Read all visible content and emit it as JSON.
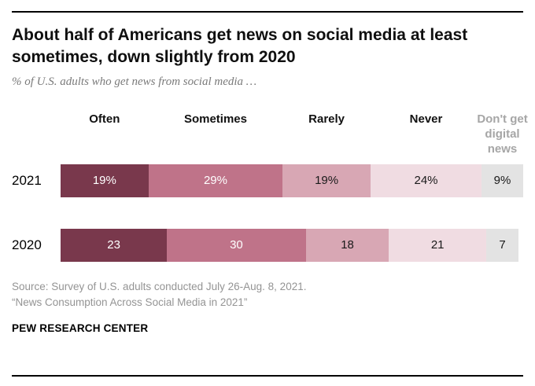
{
  "chart_data": {
    "type": "bar",
    "stacked": true,
    "orientation": "horizontal",
    "title": "About half of Americans get news on social media at least sometimes, down slightly from 2020",
    "subtitle": "% of U.S. adults who get news from social media …",
    "xlim": [
      0,
      100
    ],
    "segments": [
      "Often",
      "Sometimes",
      "Rarely",
      "Never",
      "Don't get digital news"
    ],
    "colors": [
      "#79384c",
      "#bf7389",
      "#d8a7b4",
      "#f0dce2",
      "#e3e3e3"
    ],
    "text_colors": [
      "#ffffff",
      "#ffffff",
      "#1a1a1a",
      "#1a1a1a",
      "#1a1a1a"
    ],
    "header_last_color": "#a6a6a6",
    "legend_position": "top",
    "grid": false,
    "rows": [
      {
        "year": "2021",
        "values": [
          19,
          29,
          19,
          24,
          9
        ],
        "labels": [
          "19%",
          "29%",
          "19%",
          "24%",
          "9%"
        ]
      },
      {
        "year": "2020",
        "values": [
          23,
          30,
          18,
          21,
          7
        ],
        "labels": [
          "23",
          "30",
          "18",
          "21",
          "7"
        ]
      }
    ]
  },
  "source": {
    "line1": "Source: Survey of U.S. adults conducted July 26-Aug. 8, 2021.",
    "line2": "“News Consumption Across Social Media in 2021”"
  },
  "brand": "PEW RESEARCH CENTER"
}
